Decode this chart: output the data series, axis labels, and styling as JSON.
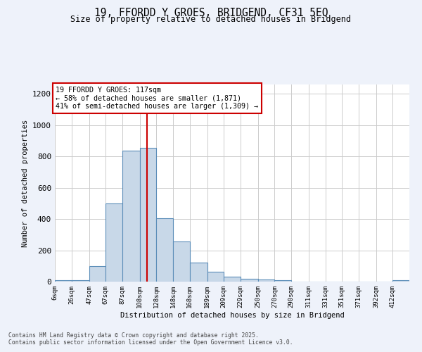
{
  "title_line1": "19, FFORDD Y GROES, BRIDGEND, CF31 5EQ",
  "title_line2": "Size of property relative to detached houses in Bridgend",
  "xlabel": "Distribution of detached houses by size in Bridgend",
  "ylabel": "Number of detached properties",
  "categories": [
    "6sqm",
    "26sqm",
    "47sqm",
    "67sqm",
    "87sqm",
    "108sqm",
    "128sqm",
    "148sqm",
    "168sqm",
    "189sqm",
    "209sqm",
    "229sqm",
    "250sqm",
    "270sqm",
    "290sqm",
    "311sqm",
    "331sqm",
    "351sqm",
    "371sqm",
    "392sqm",
    "412sqm"
  ],
  "bar_heights": [
    8,
    10,
    100,
    500,
    835,
    855,
    405,
    258,
    120,
    65,
    30,
    20,
    12,
    10,
    0,
    0,
    0,
    0,
    0,
    0,
    8
  ],
  "bar_color": "#c8d8e8",
  "bar_edge_color": "#5b8db8",
  "grid_color": "#cccccc",
  "background_color": "#eef2fa",
  "axes_background": "#ffffff",
  "vline_x": 117,
  "vline_color": "#cc0000",
  "annotation_text": "19 FFORDD Y GROES: 117sqm\n← 58% of detached houses are smaller (1,871)\n41% of semi-detached houses are larger (1,309) →",
  "annotation_box_color": "#cc0000",
  "ylim": [
    0,
    1260
  ],
  "yticks": [
    0,
    200,
    400,
    600,
    800,
    1000,
    1200
  ],
  "footer_line1": "Contains HM Land Registry data © Crown copyright and database right 2025.",
  "footer_line2": "Contains public sector information licensed under the Open Government Licence v3.0.",
  "bin_edges": [
    6,
    26,
    47,
    67,
    87,
    108,
    128,
    148,
    168,
    189,
    209,
    229,
    250,
    270,
    290,
    311,
    331,
    351,
    371,
    392,
    412,
    432
  ]
}
